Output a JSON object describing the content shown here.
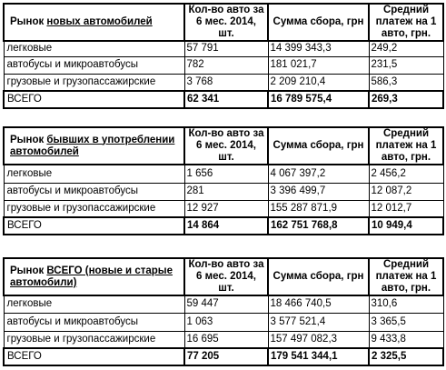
{
  "tables": [
    {
      "market_prefix": "Рынок ",
      "market_underlined": "новых автомобилей",
      "market_suffix": "",
      "col_count": "Кол-во авто за 6 мес. 2014, шт.",
      "col_sum": "Сумма сбора, грн",
      "col_avg": "Средний платеж на 1 авто, грн.",
      "rows": [
        {
          "label": "легковые",
          "count": "57 791",
          "sum": "14 399 343,3",
          "avg": "249,2"
        },
        {
          "label": "автобусы и микроавтобусы",
          "count": "782",
          "sum": "181 021,7",
          "avg": "231,5"
        },
        {
          "label": "грузовые и грузопассажирские",
          "count": "3 768",
          "sum": "2 209 210,4",
          "avg": "586,3"
        }
      ],
      "total": {
        "label": "ВСЕГО",
        "count": "62 341",
        "sum": "16 789 575,4",
        "avg": "269,3"
      }
    },
    {
      "market_prefix": "Рынок ",
      "market_underlined": "бывших в употреблении автомобилей",
      "market_suffix": "",
      "col_count": "Кол-во авто за 6 мес. 2014, шт.",
      "col_sum": "Сумма сбора, грн",
      "col_avg": "Средний платеж на 1 авто, грн.",
      "rows": [
        {
          "label": "легковые",
          "count": "1 656",
          "sum": "4 067 397,2",
          "avg": "2 456,2"
        },
        {
          "label": "автобусы и микроавтобусы",
          "count": "281",
          "sum": "3 396 499,7",
          "avg": "12 087,2"
        },
        {
          "label": "грузовые и грузопассажирские",
          "count": "12 927",
          "sum": "155 287 871,9",
          "avg": "12 012,7"
        }
      ],
      "total": {
        "label": "ВСЕГО",
        "count": "14 864",
        "sum": "162 751 768,8",
        "avg": "10 949,4"
      }
    },
    {
      "market_prefix": "Рынок ",
      "market_underlined": "ВСЕГО (новые и старые автомобили)",
      "market_suffix": "",
      "col_count": "Кол-во авто за 6 мес. 2014, шт.",
      "col_sum": "Сумма сбора, грн",
      "col_avg": "Средний платеж на 1 авто, грн.",
      "rows": [
        {
          "label": "легковые",
          "count": "59 447",
          "sum": "18 466 740,5",
          "avg": "310,6"
        },
        {
          "label": "автобусы и микроавтобусы",
          "count": "1 063",
          "sum": "3 577 521,4",
          "avg": "3 365,5"
        },
        {
          "label": "грузовые и грузопассажирские",
          "count": "16 695",
          "sum": "157 497 082,3",
          "avg": "9 433,8"
        }
      ],
      "total": {
        "label": "ВСЕГО",
        "count": "77 205",
        "sum": "179 541 344,1",
        "avg": "2 325,5"
      }
    }
  ]
}
